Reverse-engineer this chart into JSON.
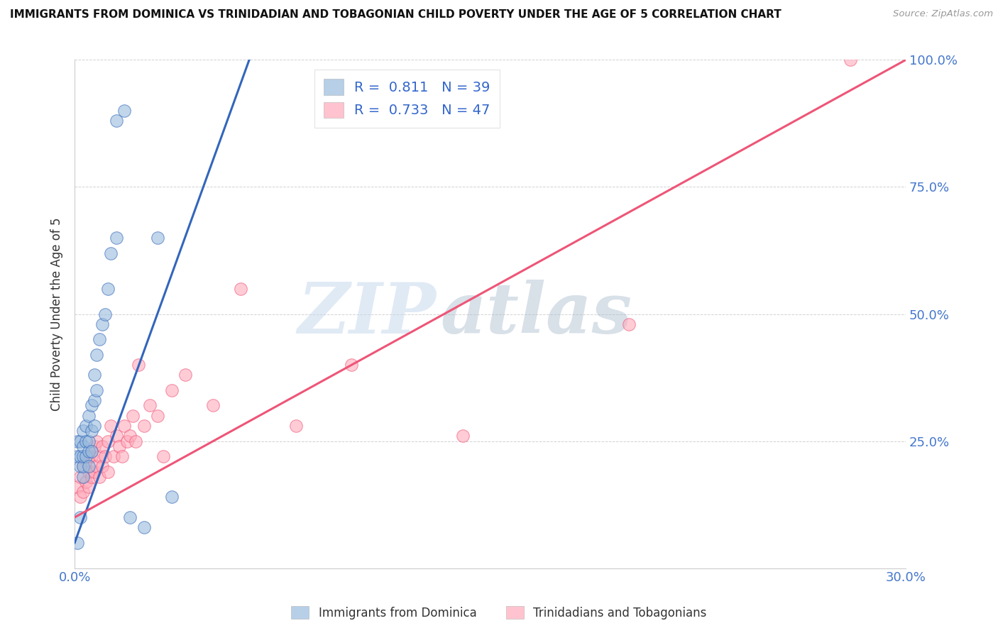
{
  "title": "IMMIGRANTS FROM DOMINICA VS TRINIDADIAN AND TOBAGONIAN CHILD POVERTY UNDER THE AGE OF 5 CORRELATION CHART",
  "source": "Source: ZipAtlas.com",
  "ylabel": "Child Poverty Under the Age of 5",
  "xlim": [
    0.0,
    0.3
  ],
  "ylim": [
    0.0,
    1.0
  ],
  "xticks": [
    0.0,
    0.05,
    0.1,
    0.15,
    0.2,
    0.25,
    0.3
  ],
  "yticks": [
    0.0,
    0.25,
    0.5,
    0.75,
    1.0
  ],
  "xticklabels": [
    "0.0%",
    "",
    "",
    "",
    "",
    "",
    "30.0%"
  ],
  "yticklabels_right": [
    "",
    "25.0%",
    "50.0%",
    "75.0%",
    "100.0%"
  ],
  "blue_R": 0.811,
  "blue_N": 39,
  "pink_R": 0.733,
  "pink_N": 47,
  "blue_color": "#99BBDD",
  "pink_color": "#FFAABB",
  "blue_line_color": "#3366BB",
  "pink_line_color": "#EE5577",
  "watermark_zip": "ZIP",
  "watermark_atlas": "atlas",
  "legend_label_blue": "Immigrants from Dominica",
  "legend_label_pink": "Trinidadians and Tobagonians",
  "blue_scatter_x": [
    0.001,
    0.001,
    0.001,
    0.002,
    0.002,
    0.002,
    0.002,
    0.003,
    0.003,
    0.003,
    0.003,
    0.003,
    0.004,
    0.004,
    0.004,
    0.005,
    0.005,
    0.005,
    0.005,
    0.006,
    0.006,
    0.006,
    0.007,
    0.007,
    0.007,
    0.008,
    0.008,
    0.009,
    0.01,
    0.011,
    0.012,
    0.013,
    0.015,
    0.015,
    0.018,
    0.02,
    0.025,
    0.03,
    0.035
  ],
  "blue_scatter_y": [
    0.05,
    0.22,
    0.25,
    0.1,
    0.2,
    0.22,
    0.25,
    0.18,
    0.2,
    0.22,
    0.24,
    0.27,
    0.22,
    0.25,
    0.28,
    0.2,
    0.23,
    0.25,
    0.3,
    0.23,
    0.27,
    0.32,
    0.28,
    0.33,
    0.38,
    0.35,
    0.42,
    0.45,
    0.48,
    0.5,
    0.55,
    0.62,
    0.65,
    0.88,
    0.9,
    0.1,
    0.08,
    0.65,
    0.14
  ],
  "pink_scatter_x": [
    0.001,
    0.002,
    0.002,
    0.003,
    0.003,
    0.004,
    0.004,
    0.005,
    0.005,
    0.005,
    0.006,
    0.006,
    0.007,
    0.007,
    0.008,
    0.008,
    0.009,
    0.009,
    0.01,
    0.01,
    0.011,
    0.012,
    0.012,
    0.013,
    0.014,
    0.015,
    0.016,
    0.017,
    0.018,
    0.019,
    0.02,
    0.021,
    0.022,
    0.023,
    0.025,
    0.027,
    0.03,
    0.032,
    0.035,
    0.04,
    0.05,
    0.06,
    0.08,
    0.1,
    0.14,
    0.2,
    0.28
  ],
  "pink_scatter_y": [
    0.16,
    0.14,
    0.18,
    0.15,
    0.2,
    0.17,
    0.21,
    0.16,
    0.19,
    0.22,
    0.18,
    0.22,
    0.19,
    0.24,
    0.2,
    0.25,
    0.18,
    0.22,
    0.2,
    0.24,
    0.22,
    0.25,
    0.19,
    0.28,
    0.22,
    0.26,
    0.24,
    0.22,
    0.28,
    0.25,
    0.26,
    0.3,
    0.25,
    0.4,
    0.28,
    0.32,
    0.3,
    0.22,
    0.35,
    0.38,
    0.32,
    0.55,
    0.28,
    0.4,
    0.26,
    0.48,
    1.0
  ],
  "blue_line_x": [
    0.0,
    0.063
  ],
  "blue_line_y": [
    0.05,
    1.0
  ],
  "pink_line_x": [
    0.0,
    0.3
  ],
  "pink_line_y": [
    0.1,
    1.0
  ]
}
